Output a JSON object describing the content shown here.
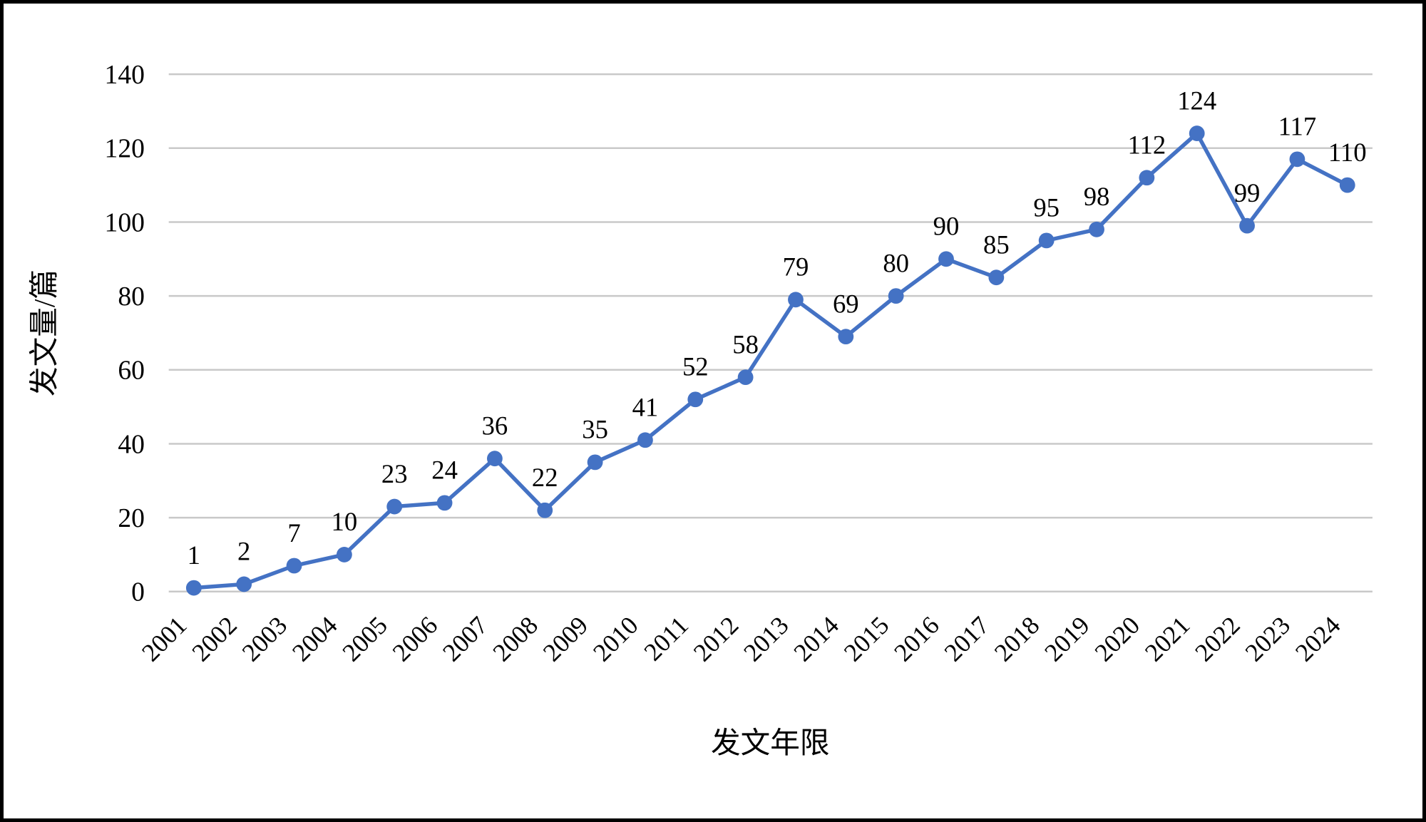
{
  "chart_data": {
    "type": "line",
    "title": "",
    "xlabel": "发文年限",
    "ylabel": "发文量/篇",
    "x": [
      "2001",
      "2002",
      "2003",
      "2004",
      "2005",
      "2006",
      "2007",
      "2008",
      "2009",
      "2010",
      "2011",
      "2012",
      "2013",
      "2014",
      "2015",
      "2016",
      "2017",
      "2018",
      "2019",
      "2020",
      "2021",
      "2022",
      "2023",
      "2024"
    ],
    "values": [
      1,
      2,
      7,
      10,
      23,
      24,
      36,
      22,
      35,
      41,
      52,
      58,
      79,
      69,
      80,
      90,
      85,
      95,
      98,
      112,
      124,
      99,
      117,
      110
    ],
    "ylim": [
      0,
      140
    ],
    "y_ticks": [
      0,
      20,
      40,
      60,
      80,
      100,
      120,
      140
    ],
    "grid": true,
    "legend": false,
    "data_labels": true,
    "x_label_rotation_deg": -45,
    "colors": {
      "line": "#4472C4",
      "marker": "#4472C4",
      "gridline": "#C9C9C9",
      "text": "#000000",
      "frame_border": "#000000",
      "background": "#FFFFFF"
    }
  }
}
